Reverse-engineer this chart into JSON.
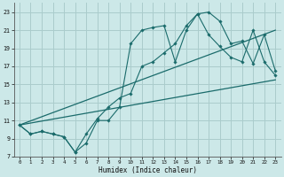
{
  "xlabel": "Humidex (Indice chaleur)",
  "bg_color": "#cce8e8",
  "grid_color": "#aacccc",
  "line_color": "#1a6b6b",
  "xlim": [
    -0.5,
    23.5
  ],
  "ylim": [
    7,
    24
  ],
  "xticks": [
    0,
    1,
    2,
    3,
    4,
    5,
    6,
    7,
    8,
    9,
    10,
    11,
    12,
    13,
    14,
    15,
    16,
    17,
    18,
    19,
    20,
    21,
    22,
    23
  ],
  "yticks": [
    7,
    9,
    11,
    13,
    15,
    17,
    19,
    21,
    23
  ],
  "curve1_x": [
    0,
    1,
    2,
    3,
    4,
    5,
    6,
    7,
    8,
    9,
    10,
    11,
    12,
    13,
    14,
    15,
    16,
    17,
    18,
    19,
    20,
    21,
    22,
    23
  ],
  "curve1_y": [
    10.5,
    9.5,
    9.8,
    9.5,
    9.2,
    7.5,
    9.5,
    11.2,
    12.5,
    13.5,
    14.0,
    17.0,
    17.5,
    18.5,
    19.5,
    21.5,
    22.8,
    20.5,
    19.2,
    18.0,
    17.5,
    21.0,
    17.5,
    16.0
  ],
  "curve2_x": [
    0,
    1,
    2,
    3,
    4,
    5,
    6,
    7,
    8,
    9,
    10,
    11,
    12,
    13,
    14,
    15,
    16,
    17,
    18,
    19,
    20,
    21,
    22,
    23
  ],
  "curve2_y": [
    10.5,
    9.5,
    9.8,
    9.5,
    9.2,
    7.5,
    8.5,
    11.0,
    11.0,
    12.5,
    19.5,
    21.0,
    21.3,
    21.5,
    17.5,
    21.0,
    22.8,
    23.0,
    22.0,
    19.5,
    19.8,
    17.3,
    20.5,
    16.5
  ],
  "line1_x": [
    0,
    23
  ],
  "line1_y": [
    10.5,
    21.0
  ],
  "line2_x": [
    0,
    23
  ],
  "line2_y": [
    10.5,
    15.5
  ]
}
